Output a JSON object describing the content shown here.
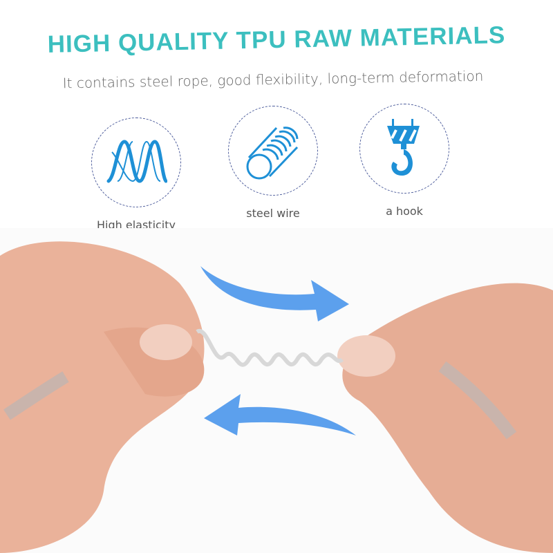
{
  "header": {
    "title": "HIGH QUALITY TPU RAW MATERIALS",
    "subtitle": "It contains steel rope, good flexibility, long-term deformation"
  },
  "features": [
    {
      "label": "High elasticity",
      "icon": "wave-icon"
    },
    {
      "label": "steel wire",
      "icon": "coil-icon"
    },
    {
      "label": "a hook",
      "icon": "hook-icon"
    }
  ],
  "colors": {
    "title": "#3cbfbf",
    "icon": "#1e90d6",
    "arrow": "#3f8fea",
    "skin": "#eab29a"
  }
}
